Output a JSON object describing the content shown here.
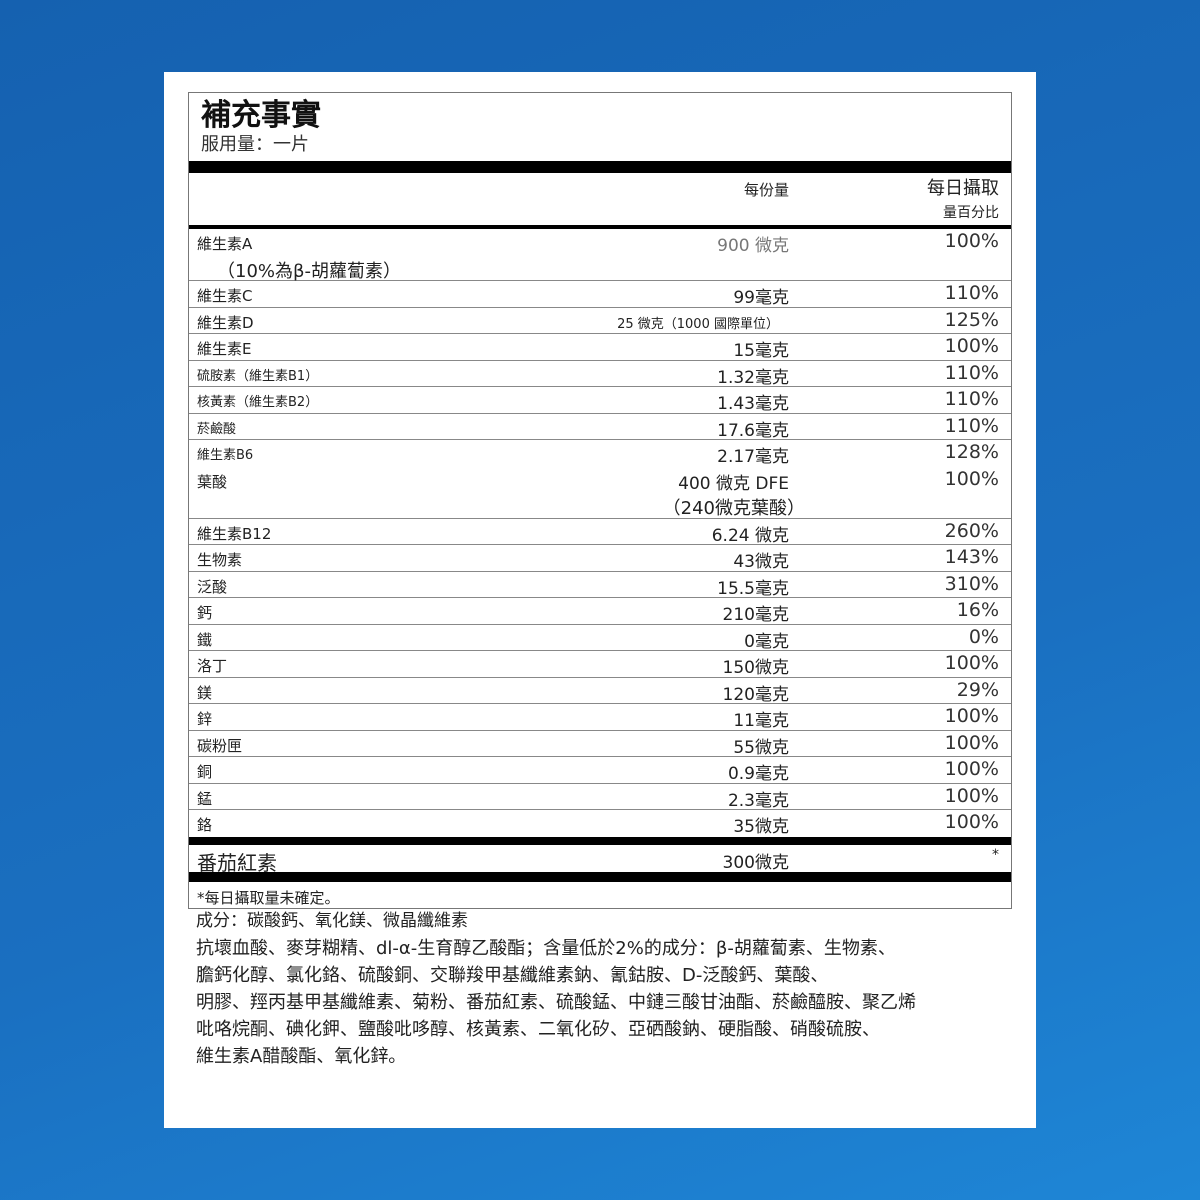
{
  "title": "補充事實",
  "serving": "服用量：一片",
  "col_amount": "每份量",
  "col_dv_1": "每日攝取",
  "col_dv_2": "量百分比",
  "vitA": {
    "name": "維生素A",
    "sub": "（10%為β-胡蘿蔔素）",
    "amount": "900 微克",
    "dv": "100%"
  },
  "rows1": [
    {
      "name": "維生素C",
      "amount": "99毫克",
      "dv": "110%"
    },
    {
      "name": "維生素D",
      "amount": "25 微克（1000 國際單位）",
      "dv": "125%"
    },
    {
      "name": "維生素E",
      "amount": "15毫克",
      "dv": "100%"
    },
    {
      "name": "硫胺素（維生素B1）",
      "amount": "1.32毫克",
      "dv": "110%"
    },
    {
      "name": "核黃素（維生素B2）",
      "amount": "1.43毫克",
      "dv": "110%"
    },
    {
      "name": "菸鹼酸",
      "amount": "17.6毫克",
      "dv": "110%"
    },
    {
      "name": "維生素B6",
      "amount": "2.17毫克",
      "dv": "128%"
    }
  ],
  "folate": {
    "name": "葉酸",
    "amount": "400 微克 DFE",
    "sub": "（240微克葉酸）",
    "dv": "100%"
  },
  "rows2": [
    {
      "name": "維生素B12",
      "amount": "6.24 微克",
      "dv": "260%"
    },
    {
      "name": "生物素",
      "amount": "43微克",
      "dv": "143%"
    },
    {
      "name": "泛酸",
      "amount": "15.5毫克",
      "dv": "310%"
    },
    {
      "name": "鈣",
      "amount": "210毫克",
      "dv": "16%"
    },
    {
      "name": "鐵",
      "amount": "0毫克",
      "dv": "0%"
    },
    {
      "name": "洛丁",
      "amount": "150微克",
      "dv": "100%"
    },
    {
      "name": "鎂",
      "amount": "120毫克",
      "dv": "29%"
    },
    {
      "name": "鋅",
      "amount": "11毫克",
      "dv": "100%"
    },
    {
      "name": "碳粉匣",
      "amount": "55微克",
      "dv": "100%"
    },
    {
      "name": "銅",
      "amount": "0.9毫克",
      "dv": "100%"
    },
    {
      "name": "錳",
      "amount": "2.3毫克",
      "dv": "100%"
    },
    {
      "name": "鉻",
      "amount": "35微克",
      "dv": "100%"
    }
  ],
  "lycopene": {
    "name": "番茄紅素",
    "amount": "300微克",
    "dv": "*"
  },
  "footnote": "*每日攝取量未確定。",
  "ingredients": [
    "成分：碳酸鈣、氧化鎂、微晶纖維素",
    "抗壞血酸、麥芽糊精、dl-α-生育醇乙酸酯；含量低於2%的成分：β-胡蘿蔔素、生物素、",
    "膽鈣化醇、氯化鉻、硫酸銅、交聯羧甲基纖維素鈉、氰鈷胺、D-泛酸鈣、葉酸、",
    "明膠、羥丙基甲基纖維素、菊粉、番茄紅素、硫酸錳、中鏈三酸甘油酯、菸鹼醯胺、聚乙烯",
    "吡咯烷酮、碘化鉀、鹽酸吡哆醇、核黃素、二氧化矽、亞硒酸鈉、硬脂酸、硝酸硫胺、",
    "維生素A醋酸酯、氧化鋅。"
  ]
}
